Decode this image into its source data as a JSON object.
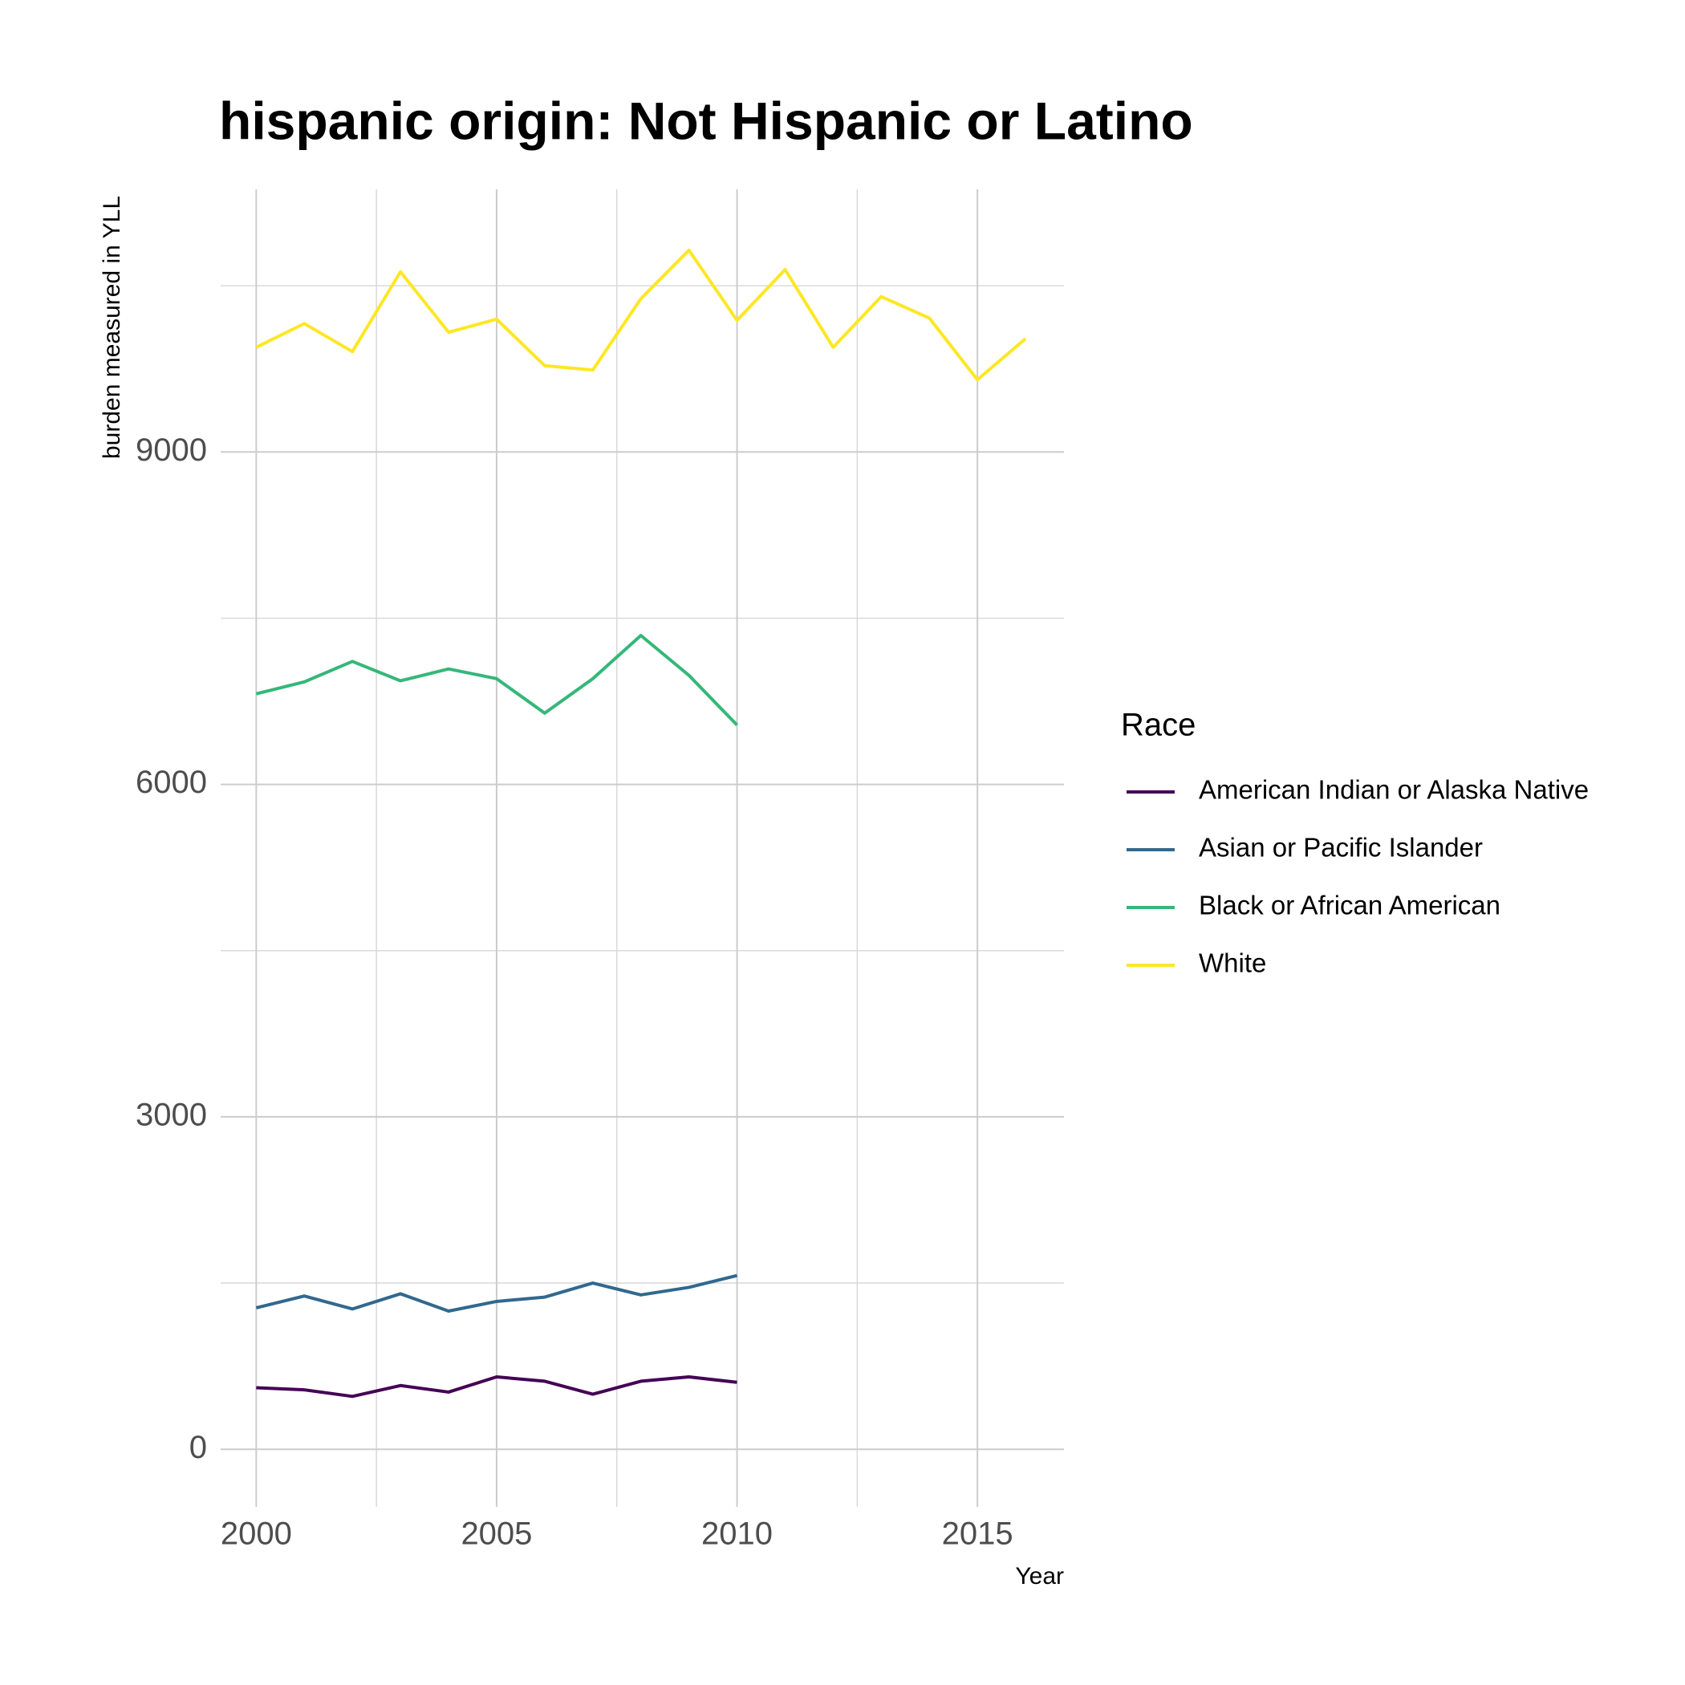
{
  "chart_data": {
    "type": "line",
    "title": "hispanic origin: Not Hispanic or Latino",
    "x_label": "Year",
    "y_label": "burden measured in YLL",
    "legend_title": "Race",
    "legend_position": "right",
    "grid": true,
    "x": [
      2000,
      2001,
      2002,
      2003,
      2004,
      2005,
      2006,
      2007,
      2008,
      2009,
      2010,
      2011,
      2012,
      2013,
      2014,
      2015,
      2016
    ],
    "series": [
      {
        "name": "American Indian or Alaska Native",
        "color": "#440154",
        "values": [
          555,
          536,
          477,
          575,
          516,
          653,
          614,
          497,
          614,
          653,
          604,
          null,
          null,
          null,
          null,
          null,
          null
        ]
      },
      {
        "name": "Asian or Pacific Islander",
        "color": "#31688e",
        "values": [
          1276,
          1383,
          1266,
          1403,
          1247,
          1334,
          1373,
          1500,
          1393,
          1461,
          1568,
          null,
          null,
          null,
          null,
          null,
          null
        ]
      },
      {
        "name": "Black or African American",
        "color": "#35b779",
        "values": [
          6818,
          6925,
          7110,
          6935,
          7042,
          6954,
          6643,
          6954,
          7344,
          6984,
          6536,
          null,
          null,
          null,
          null,
          null,
          null
        ]
      },
      {
        "name": "White",
        "color": "#fde725",
        "values": [
          9945,
          10159,
          9906,
          10626,
          10081,
          10198,
          9779,
          9740,
          10383,
          10821,
          10188,
          10646,
          9945,
          10402,
          10208,
          9652,
          10022
        ]
      }
    ],
    "xlim": [
      1999.26,
      2016.8
    ],
    "ylim": [
      -520,
      11370
    ],
    "xticks": [
      2000,
      2005,
      2010,
      2015
    ],
    "yticks": [
      0,
      3000,
      6000,
      9000
    ],
    "xticks_minor": [
      2002.5,
      2007.5,
      2012.5
    ],
    "yticks_minor": [
      1500,
      4500,
      7500,
      10500
    ]
  }
}
